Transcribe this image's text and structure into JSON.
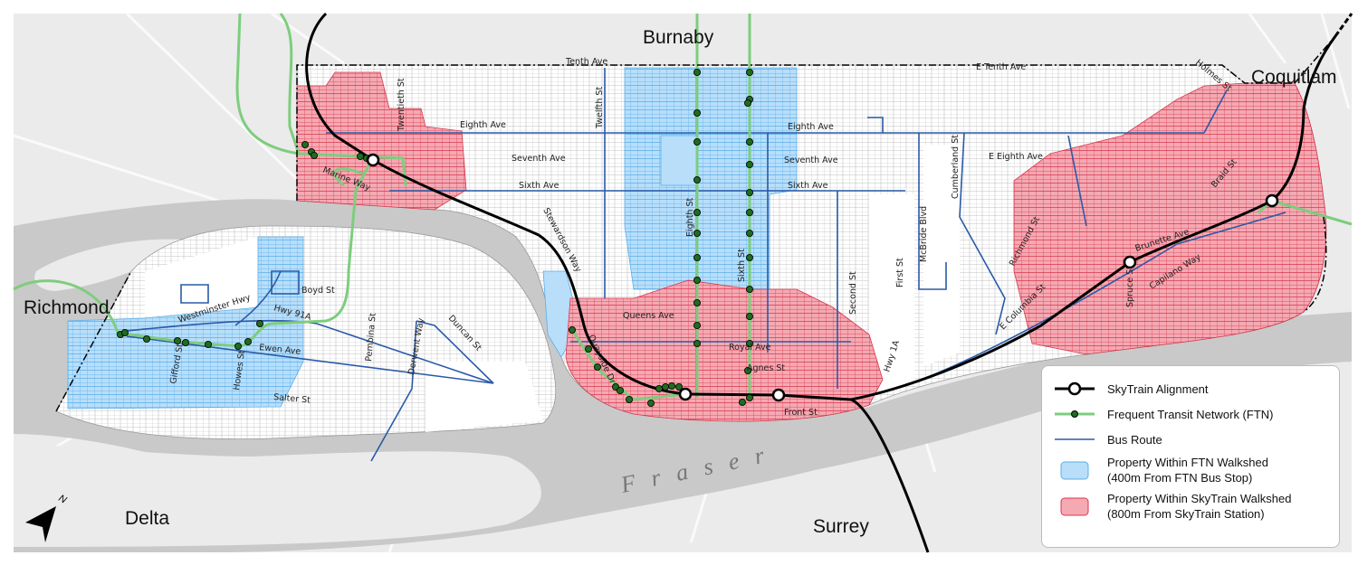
{
  "places": {
    "burnaby": "Burnaby",
    "coquitlam": "Coquitlam",
    "richmond": "Richmond",
    "delta": "Delta",
    "surrey": "Surrey",
    "river": "Fraser",
    "north": "N"
  },
  "streets": {
    "tenth_ave": "Tenth Ave",
    "e_tenth_ave": "E Tenth Ave",
    "holmes_st": "Holmes St",
    "twentieth_st": "Twentieth St",
    "twelfth_st": "Twelfth St",
    "eighth_ave_w": "Eighth Ave",
    "eighth_ave": "Eighth Ave",
    "e_eighth_ave": "E Eighth Ave",
    "seventh_ave_w": "Seventh Ave",
    "seventh_ave": "Seventh Ave",
    "sixth_ave_w": "Sixth Ave",
    "sixth_ave": "Sixth Ave",
    "marine_way": "Marine Way",
    "stewardson_way": "Stewardson Way",
    "eighth_st": "Eighth St",
    "sixth_st": "Sixth St",
    "second_st": "Second St",
    "first_st": "First St",
    "mcbride_blvd": "McBride Blvd",
    "cumberland_st": "Cumberland St",
    "richmond_st": "Richmond St",
    "braid_st": "Braid St",
    "brunette_ave": "Brunette Ave",
    "spruce_st": "Spruce St",
    "capilano_way": "Capilano Way",
    "e_columbia_st": "E Columbia St",
    "queens_ave": "Queens Ave",
    "royal_ave": "Royal Ave",
    "agnes_st": "Agnes St",
    "front_st": "Front St",
    "hwy_1a": "Hwy 1A",
    "quayside_dr": "Quayside Dr",
    "boyd_st": "Boyd St",
    "westminster_hwy": "Westminster Hwy",
    "hwy_91a": "Hwy 91A",
    "ewen_ave": "Ewen Ave",
    "gifford_st": "Gifford St",
    "howes_st": "Howes St",
    "pembina_st": "Pembina St",
    "derwent_way": "Derwent Way",
    "duncan_st": "Duncan St",
    "salter_st": "Salter St"
  },
  "legend": {
    "skytrain": "SkyTrain Alignment",
    "ftn": "Frequent Transit Network (FTN)",
    "bus": "Bus Route",
    "ftn_walkshed_1": "Property Within FTN Walkshed",
    "ftn_walkshed_2": "(400m From FTN Bus Stop)",
    "sky_walkshed_1": "Property Within SkyTrain Walkshed",
    "sky_walkshed_2": "(800m From SkyTrain Station)"
  },
  "colors": {
    "land": "#ebebeb",
    "water": "#c9c9c9",
    "city": "#ffffff",
    "parcel": "#b9b9b9",
    "skytrain": "#000000",
    "ftn_line": "#7dcd7d",
    "ftn_stop": "#1f6b1f",
    "bus_route": "#2a5aa8",
    "ftn_walkshed": "#b8defa",
    "ftn_walkshed_edge": "#5aaee8",
    "sky_walkshed": "#f4a9b3",
    "sky_walkshed_edge": "#d8384c"
  }
}
